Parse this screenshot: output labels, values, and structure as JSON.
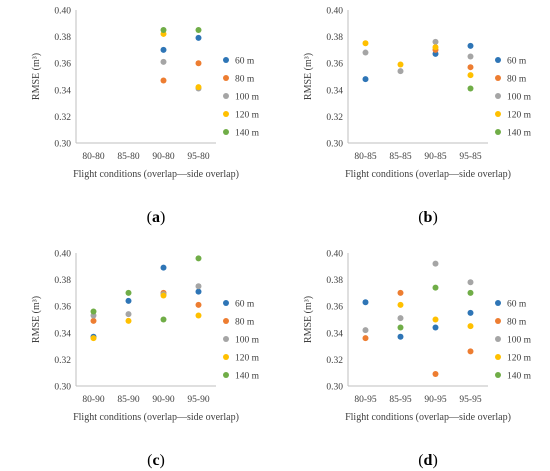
{
  "series_colors": {
    "60 m": "#2e75b6",
    "80 m": "#ed7d31",
    "100 m": "#a5a5a5",
    "120 m": "#ffc000",
    "140 m": "#70ad47"
  },
  "chart_data": [
    {
      "type": "scatter",
      "panel_label": "(a)",
      "panel_letter": "a",
      "xlabel": "Flight conditions (overlap—side overlap)",
      "ylabel": "RMSE (m³)",
      "categories": [
        "80-80",
        "85-80",
        "90-80",
        "95-80"
      ],
      "yticks": [
        "0.30",
        "0.32",
        "0.34",
        "0.36",
        "0.38",
        "0.40"
      ],
      "ylim": [
        0.3,
        0.4
      ],
      "grid": false,
      "legend": "right",
      "series": [
        {
          "name": "60 m",
          "values": [
            null,
            null,
            0.37,
            0.379
          ]
        },
        {
          "name": "80 m",
          "values": [
            null,
            null,
            0.347,
            0.36
          ]
        },
        {
          "name": "100 m",
          "values": [
            null,
            null,
            0.361,
            0.341
          ]
        },
        {
          "name": "120 m",
          "values": [
            null,
            null,
            0.382,
            0.342
          ]
        },
        {
          "name": "140 m",
          "values": [
            null,
            null,
            0.385,
            0.385
          ]
        }
      ]
    },
    {
      "type": "scatter",
      "panel_label": "(b)",
      "panel_letter": "b",
      "xlabel": "Flight conditions (overlap—side overlap)",
      "ylabel": "RMSE (m³)",
      "categories": [
        "80-85",
        "85-85",
        "90-85",
        "95-85"
      ],
      "yticks": [
        "0.30",
        "0.32",
        "0.34",
        "0.36",
        "0.38",
        "0.40"
      ],
      "ylim": [
        0.3,
        0.4
      ],
      "grid": false,
      "legend": "right",
      "series": [
        {
          "name": "60 m",
          "values": [
            0.348,
            null,
            0.367,
            0.373
          ]
        },
        {
          "name": "80 m",
          "values": [
            null,
            null,
            0.37,
            0.357
          ]
        },
        {
          "name": "100 m",
          "values": [
            0.368,
            0.354,
            0.376,
            0.365
          ]
        },
        {
          "name": "120 m",
          "values": [
            0.375,
            0.359,
            0.372,
            0.351
          ]
        },
        {
          "name": "140 m",
          "values": [
            null,
            null,
            null,
            0.341
          ]
        }
      ]
    },
    {
      "type": "scatter",
      "panel_label": "(c)",
      "panel_letter": "c",
      "xlabel": "Flight conditions (overlap—side overlap)",
      "ylabel": "RMSE (m³)",
      "categories": [
        "80-90",
        "85-90",
        "90-90",
        "95-90"
      ],
      "yticks": [
        "0.30",
        "0.32",
        "0.34",
        "0.36",
        "0.38",
        "0.40"
      ],
      "ylim": [
        0.3,
        0.4
      ],
      "grid": false,
      "legend": "right",
      "series": [
        {
          "name": "60 m",
          "values": [
            0.337,
            0.364,
            0.389,
            0.371
          ]
        },
        {
          "name": "80 m",
          "values": [
            0.349,
            null,
            0.37,
            0.361
          ]
        },
        {
          "name": "100 m",
          "values": [
            0.353,
            0.354,
            0.369,
            0.375
          ]
        },
        {
          "name": "120 m",
          "values": [
            0.336,
            0.349,
            0.368,
            0.353
          ]
        },
        {
          "name": "140 m",
          "values": [
            0.356,
            0.37,
            0.35,
            0.396
          ]
        }
      ]
    },
    {
      "type": "scatter",
      "panel_label": "(d)",
      "panel_letter": "d",
      "xlabel": "Flight conditions (overlap—side overlap)",
      "ylabel": "RMSE (m³)",
      "categories": [
        "80-95",
        "85-95",
        "90-95",
        "95-95"
      ],
      "yticks": [
        "0.30",
        "0.32",
        "0.34",
        "0.36",
        "0.38",
        "0.40"
      ],
      "ylim": [
        0.3,
        0.4
      ],
      "grid": false,
      "legend": "right",
      "series": [
        {
          "name": "60 m",
          "values": [
            0.363,
            0.337,
            0.344,
            0.355
          ]
        },
        {
          "name": "80 m",
          "values": [
            0.336,
            0.37,
            0.309,
            0.326
          ]
        },
        {
          "name": "100 m",
          "values": [
            0.342,
            0.351,
            0.392,
            0.378
          ]
        },
        {
          "name": "120 m",
          "values": [
            null,
            0.361,
            0.35,
            0.345
          ]
        },
        {
          "name": "140 m",
          "values": [
            null,
            0.344,
            0.374,
            0.37
          ]
        }
      ]
    }
  ]
}
